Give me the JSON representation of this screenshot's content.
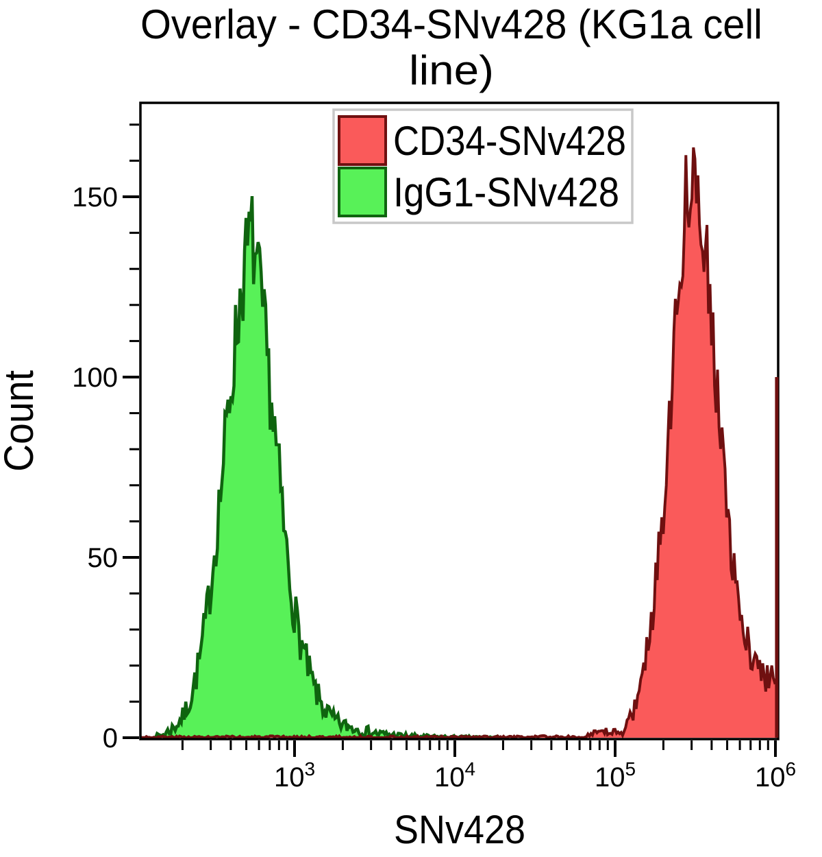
{
  "title": {
    "line1": "Overlay - CD34-SNv428 (KG1a cell",
    "line2": "line)"
  },
  "legend": {
    "entries": [
      {
        "label": "CD34-SNv428",
        "fill": "#FA5A5A",
        "stroke": "#6F1010"
      },
      {
        "label": "IgG1-SNv428",
        "fill": "#58F158",
        "stroke": "#0F640F"
      }
    ]
  },
  "axes": {
    "x_label": "SNv428",
    "y_label": "Count",
    "x_ticks": [
      {
        "base": "10",
        "exponent": "3"
      },
      {
        "base": "10",
        "exponent": "4"
      },
      {
        "base": "10",
        "exponent": "5"
      },
      {
        "base": "10",
        "exponent": "6"
      }
    ],
    "y_ticks": [
      0,
      50,
      100,
      150
    ],
    "y_minor_step": 10,
    "y_minor_max": 170
  },
  "chart_data": {
    "type": "area",
    "subtype": "flow-cytometry-histogram-overlay",
    "x_scale": "log10",
    "x_log_range": [
      2.04,
      6.02
    ],
    "ylim": [
      0,
      176
    ],
    "grid": false,
    "legend_position": "top-center-inside",
    "title": "Overlay - CD34-SNv428 (KG1a cell line)",
    "xlabel": "SNv428",
    "ylabel": "Count",
    "series": [
      {
        "name": "IgG1-SNv428",
        "fill": "#58F158",
        "stroke": "#0F640F",
        "stroke_width": 4.5,
        "noise_amp": 1.15,
        "seed": 7,
        "peak": {
          "x": 540,
          "count": 140
        },
        "points": [
          [
            2.124,
            0.2
          ],
          [
            2.188,
            1
          ],
          [
            2.252,
            3
          ],
          [
            2.308,
            6
          ],
          [
            2.359,
            12
          ],
          [
            2.41,
            22
          ],
          [
            2.453,
            34
          ],
          [
            2.496,
            50
          ],
          [
            2.538,
            68
          ],
          [
            2.581,
            88
          ],
          [
            2.624,
            107
          ],
          [
            2.667,
            124
          ],
          [
            2.701,
            134
          ],
          [
            2.731,
            140
          ],
          [
            2.765,
            130
          ],
          [
            2.799,
            118
          ],
          [
            2.833,
            103
          ],
          [
            2.868,
            88
          ],
          [
            2.902,
            73
          ],
          [
            2.936,
            57
          ],
          [
            2.97,
            44
          ],
          [
            3.004,
            34
          ],
          [
            3.043,
            26
          ],
          [
            3.085,
            19
          ],
          [
            3.128,
            13
          ],
          [
            3.184,
            8
          ],
          [
            3.244,
            5
          ],
          [
            3.299,
            3.5
          ],
          [
            3.363,
            2.8
          ],
          [
            3.427,
            2
          ],
          [
            3.513,
            1.2
          ],
          [
            3.598,
            0.8
          ],
          [
            3.684,
            0.5
          ],
          [
            3.791,
            0.3
          ],
          [
            3.897,
            0.2
          ],
          [
            4.05,
            0.12
          ],
          [
            4.25,
            0.05
          ],
          [
            4.3,
            0
          ]
        ]
      },
      {
        "name": "CD34-SNv428",
        "fill": "#FA5A5A",
        "stroke": "#6F1010",
        "stroke_width": 4,
        "noise_amp": 1.15,
        "seed": 3,
        "peak": {
          "x": 310000,
          "count": 160
        },
        "edge_spike": {
          "log_x": 6.008,
          "count": 100
        },
        "points": [
          [
            2.038,
            0.12
          ],
          [
            2.6,
            0.1
          ],
          [
            3.2,
            0.1
          ],
          [
            3.8,
            0.1
          ],
          [
            4.3,
            0.12
          ],
          [
            4.6,
            0.15
          ],
          [
            4.795,
            0.3
          ],
          [
            4.859,
            0.8
          ],
          [
            4.915,
            1.2
          ],
          [
            4.974,
            1.6
          ],
          [
            5.03,
            1.4
          ],
          [
            5.064,
            3
          ],
          [
            5.094,
            5
          ],
          [
            5.124,
            9
          ],
          [
            5.154,
            14
          ],
          [
            5.184,
            21
          ],
          [
            5.214,
            28
          ],
          [
            5.239,
            37
          ],
          [
            5.265,
            48
          ],
          [
            5.291,
            60
          ],
          [
            5.316,
            75
          ],
          [
            5.342,
            92
          ],
          [
            5.368,
            110
          ],
          [
            5.393,
            126
          ],
          [
            5.419,
            140
          ],
          [
            5.444,
            150
          ],
          [
            5.47,
            157
          ],
          [
            5.496,
            160
          ],
          [
            5.521,
            154
          ],
          [
            5.547,
            146
          ],
          [
            5.573,
            134
          ],
          [
            5.598,
            119
          ],
          [
            5.624,
            103
          ],
          [
            5.65,
            88
          ],
          [
            5.679,
            72
          ],
          [
            5.709,
            58
          ],
          [
            5.739,
            45
          ],
          [
            5.769,
            36
          ],
          [
            5.803,
            29
          ],
          [
            5.838,
            25
          ],
          [
            5.876,
            21
          ],
          [
            5.919,
            18
          ],
          [
            5.962,
            17
          ],
          [
            6.017,
            15
          ]
        ]
      }
    ]
  }
}
